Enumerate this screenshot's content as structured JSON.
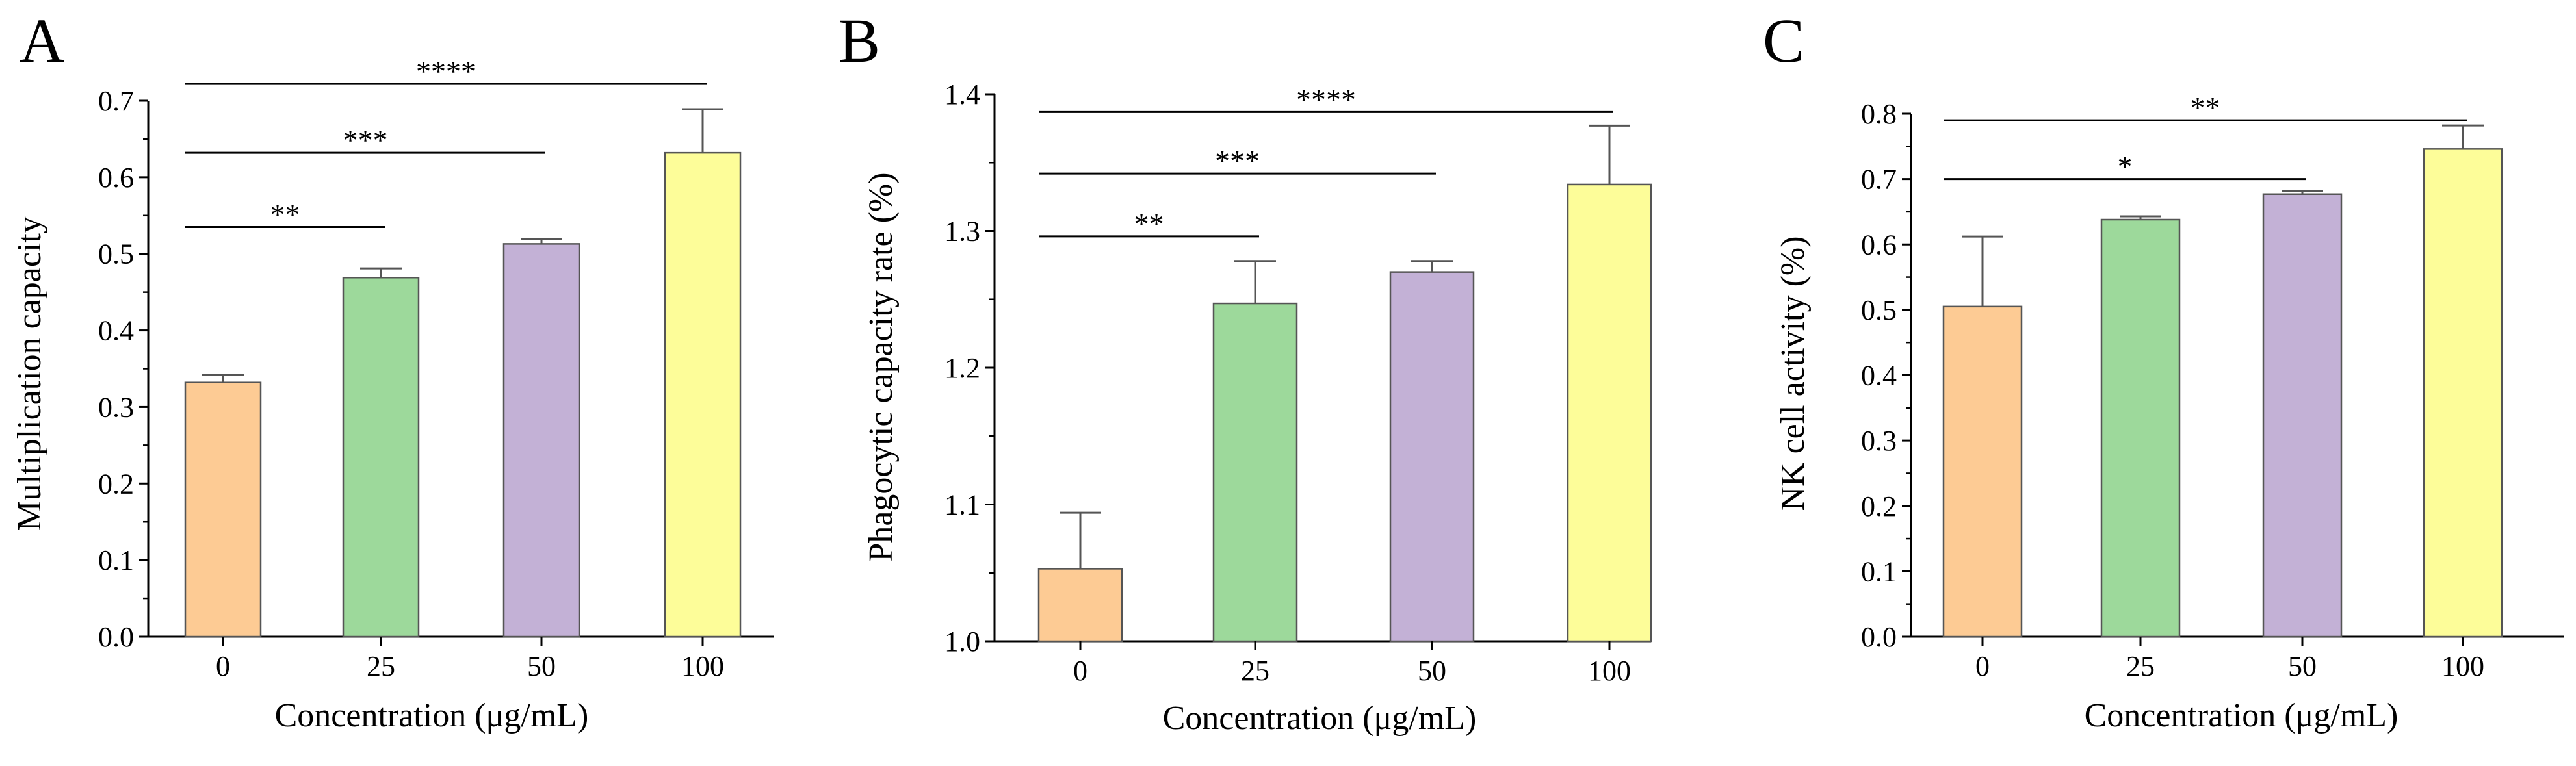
{
  "chart_data": [
    {
      "panel": "A",
      "type": "bar",
      "categories": [
        "0",
        "25",
        "50",
        "100"
      ],
      "values": [
        0.332,
        0.469,
        0.513,
        0.632
      ],
      "errors": [
        0.01,
        0.012,
        0.006,
        0.057
      ],
      "colors": [
        "#FDCB94",
        "#9DD99B",
        "#C3B1D6",
        "#FDFD99"
      ],
      "xlabel": "Concentration (μg/mL)",
      "ylabel": "Multiplication capacity",
      "ylim": [
        0.0,
        0.7
      ],
      "yticks": [
        "0.0",
        "0.1",
        "0.2",
        "0.3",
        "0.4",
        "0.5",
        "0.6",
        "0.7"
      ],
      "significance": [
        {
          "from": 0,
          "to": 1,
          "label": "**",
          "y": 0.535
        },
        {
          "from": 0,
          "to": 2,
          "label": "***",
          "y": 0.632
        },
        {
          "from": 0,
          "to": 3,
          "label": "****",
          "y": 0.722
        }
      ]
    },
    {
      "panel": "B",
      "type": "bar",
      "categories": [
        "0",
        "25",
        "50",
        "100"
      ],
      "values": [
        1.053,
        1.247,
        1.27,
        1.334
      ],
      "errors": [
        0.041,
        0.031,
        0.008,
        0.043
      ],
      "colors": [
        "#FDCB94",
        "#9DD99B",
        "#C3B1D6",
        "#FDFD99"
      ],
      "xlabel": "Concentration (μg/mL)",
      "ylabel": "Phagocytic capacity rate (%)",
      "ylim": [
        1.0,
        1.4
      ],
      "yticks": [
        "1.0",
        "1.1",
        "1.2",
        "1.3",
        "1.4"
      ],
      "significance": [
        {
          "from": 0,
          "to": 1,
          "label": "**",
          "y": 1.296
        },
        {
          "from": 0,
          "to": 2,
          "label": "***",
          "y": 1.342
        },
        {
          "from": 0,
          "to": 3,
          "label": "****",
          "y": 1.387
        }
      ]
    },
    {
      "panel": "C",
      "type": "bar",
      "categories": [
        "0",
        "25",
        "50",
        "100"
      ],
      "values": [
        0.505,
        0.638,
        0.677,
        0.746
      ],
      "errors": [
        0.107,
        0.005,
        0.005,
        0.036
      ],
      "colors": [
        "#FDCB94",
        "#9DD99B",
        "#C3B1D6",
        "#FDFD99"
      ],
      "xlabel": "Concentration (μg/mL)",
      "ylabel": "NK cell activity (%)",
      "ylim": [
        0.0,
        0.8
      ],
      "yticks": [
        "0.0",
        "0.1",
        "0.2",
        "0.3",
        "0.4",
        "0.5",
        "0.6",
        "0.7",
        "0.8"
      ],
      "significance": [
        {
          "from": 0,
          "to": 2,
          "label": "*",
          "y": 0.7
        },
        {
          "from": 0,
          "to": 3,
          "label": "**",
          "y": 0.79
        }
      ]
    }
  ]
}
